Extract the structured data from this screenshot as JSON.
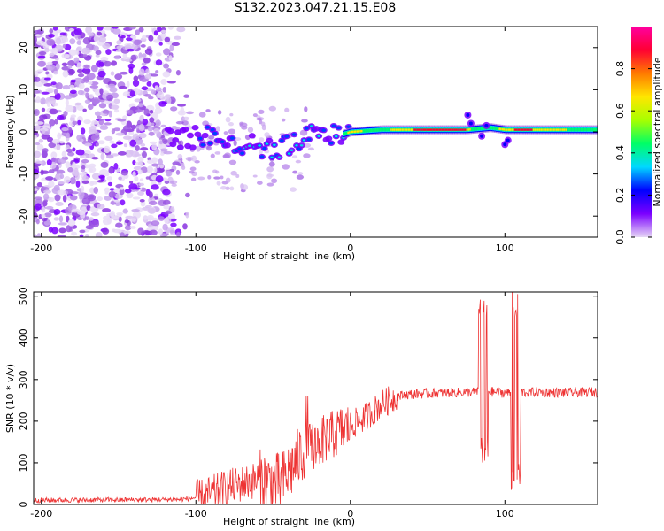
{
  "title": "S132.2023.047.21.15.E08",
  "chart_data": [
    {
      "type": "heatmap",
      "xlabel": "Height of straight line (km)",
      "ylabel": "Frequency (Hz)",
      "xlim": [
        -205,
        160
      ],
      "ylim": [
        -25,
        25
      ],
      "xticks": [
        -200,
        -100,
        0,
        100
      ],
      "yticks": [
        -20,
        -10,
        0,
        10,
        20
      ],
      "colorbar": {
        "label": "Normalized spectral amplitude",
        "range": [
          0.0,
          1.0
        ],
        "ticks": [
          "0.0",
          "0.2",
          "0.4",
          "0.6",
          "0.8"
        ],
        "colors": [
          "#e6d7f5",
          "#7b00ff",
          "#0000ff",
          "#00d8ff",
          "#00ff66",
          "#a8ff00",
          "#ffe600",
          "#ff7a00",
          "#ff0033",
          "#ff00a0"
        ]
      },
      "ridge": {
        "description_points": [
          {
            "x": -115,
            "y": -2
          },
          {
            "x": -95,
            "y": -1
          },
          {
            "x": -80,
            "y": -2
          },
          {
            "x": -65,
            "y": -3
          },
          {
            "x": -50,
            "y": -4
          },
          {
            "x": -35,
            "y": -3
          },
          {
            "x": -20,
            "y": 1
          },
          {
            "x": -10,
            "y": -1
          },
          {
            "x": 0,
            "y": 0
          },
          {
            "x": 20,
            "y": 0.5
          },
          {
            "x": 50,
            "y": 0.5
          },
          {
            "x": 75,
            "y": 0.5
          },
          {
            "x": 90,
            "y": 1
          },
          {
            "x": 100,
            "y": 0.5
          },
          {
            "x": 130,
            "y": 0.5
          },
          {
            "x": 160,
            "y": 0.5
          }
        ]
      }
    },
    {
      "type": "line",
      "xlabel": "Height of straight line (km)",
      "ylabel": "SNR (10 * v/v)",
      "xlim": [
        -205,
        160
      ],
      "ylim": [
        0,
        510
      ],
      "xticks": [
        -200,
        -100,
        0,
        100
      ],
      "yticks": [
        0,
        100,
        200,
        300,
        400,
        500
      ],
      "color": "#ee3333",
      "series_envelope": [
        {
          "x": -205,
          "y": 10
        },
        {
          "x": -110,
          "y": 12
        },
        {
          "x": -95,
          "y": 18
        },
        {
          "x": -80,
          "y": 40
        },
        {
          "x": -60,
          "y": 60
        },
        {
          "x": -45,
          "y": 50
        },
        {
          "x": -30,
          "y": 130
        },
        {
          "x": -20,
          "y": 150
        },
        {
          "x": -10,
          "y": 170
        },
        {
          "x": 0,
          "y": 190
        },
        {
          "x": 10,
          "y": 210
        },
        {
          "x": 20,
          "y": 240
        },
        {
          "x": 30,
          "y": 260
        },
        {
          "x": 40,
          "y": 265
        },
        {
          "x": 60,
          "y": 268
        },
        {
          "x": 80,
          "y": 270
        },
        {
          "x": 85,
          "y": 272
        },
        {
          "x": 100,
          "y": 268
        },
        {
          "x": 120,
          "y": 270
        },
        {
          "x": 140,
          "y": 268
        },
        {
          "x": 160,
          "y": 270
        }
      ],
      "spikes": [
        {
          "x": 86,
          "ymax": 510,
          "ymin": 90
        },
        {
          "x": 107,
          "ymax": 510,
          "ymin": 30
        }
      ]
    }
  ]
}
